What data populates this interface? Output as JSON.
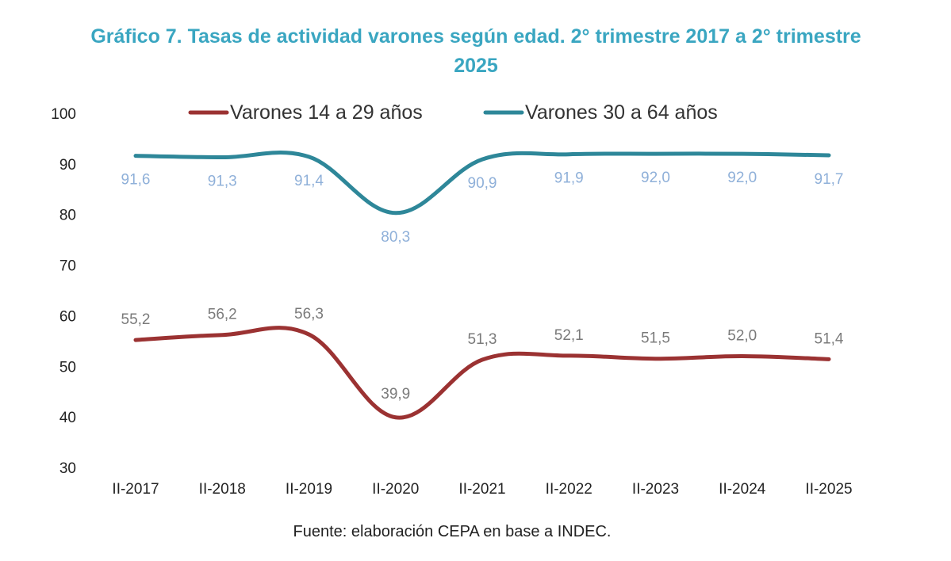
{
  "chart_data": {
    "type": "line",
    "title": "Gráfico 7. Tasas de actividad varones según edad. 2° trimestre 2017 a 2° trimestre 2025",
    "title_lines": [
      "Gráfico 7. Tasas de actividad varones según edad. 2° trimestre 2017 a 2° trimestre",
      "2025"
    ],
    "xlabel": "",
    "ylabel": "",
    "categories": [
      "II-2017",
      "II-2018",
      "II-2019",
      "II-2020",
      "II-2021",
      "II-2022",
      "II-2023",
      "II-2024",
      "II-2025"
    ],
    "ylim": [
      30,
      100
    ],
    "yticks": [
      100,
      90,
      80,
      70,
      60,
      50,
      40,
      30
    ],
    "grid": false,
    "legend_position": "top-center",
    "series": [
      {
        "name": "Varones 14 a 29 años",
        "color": "#9b3232",
        "label_color": "#7a7a7a",
        "values": [
          55.2,
          56.2,
          56.3,
          39.9,
          51.3,
          52.1,
          51.5,
          52.0,
          51.4
        ],
        "labels": [
          "55,2",
          "56,2",
          "56,3",
          "39,9",
          "51,3",
          "52,1",
          "51,5",
          "52,0",
          "51,4"
        ]
      },
      {
        "name": "Varones 30 a 64 años",
        "color": "#2e8799",
        "label_color": "#8fb0d9",
        "values": [
          91.6,
          91.3,
          91.4,
          80.3,
          90.9,
          91.9,
          92.0,
          92.0,
          91.7
        ],
        "labels": [
          "91,6",
          "91,3",
          "91,4",
          "80,3",
          "90,9",
          "91,9",
          "92,0",
          "92,0",
          "91,7"
        ]
      }
    ],
    "source": "Fuente: elaboración CEPA en base a INDEC.",
    "title_color": "#3aa6c1"
  }
}
